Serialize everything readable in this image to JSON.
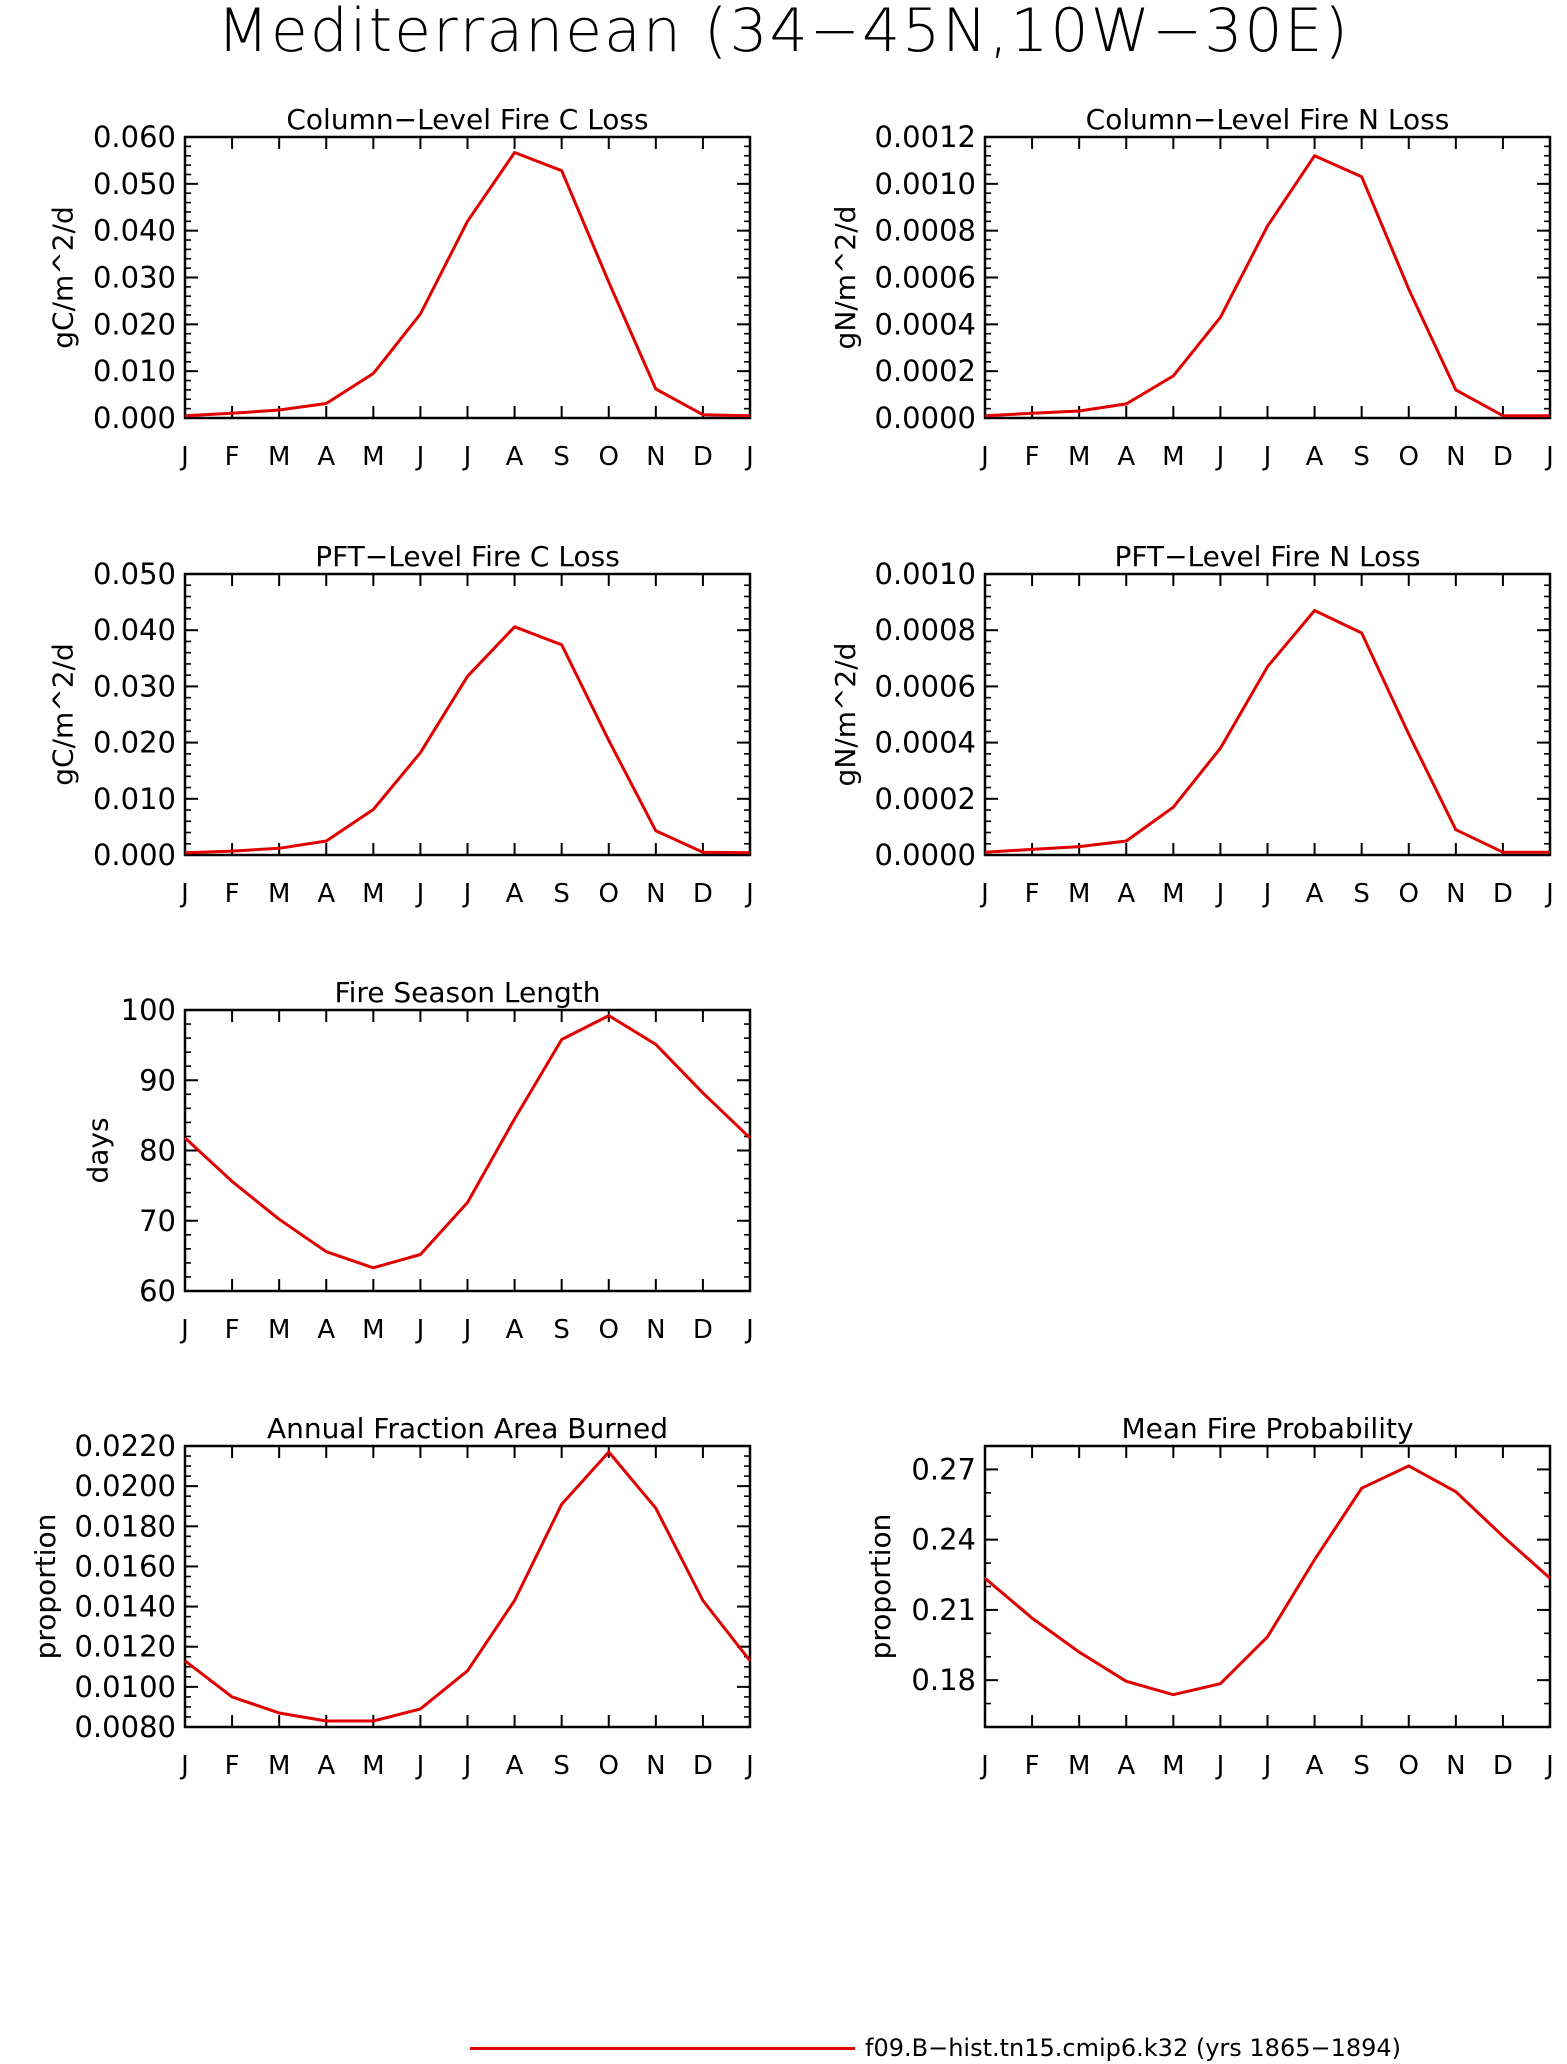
{
  "figure": {
    "title": "Mediterranean (34−45N,10W−30E)",
    "legend_label": "f09.B−hist.tn15.cmip6.k32 (yrs 1865−1894)",
    "line_color": "#e00000"
  },
  "chart_data": [
    {
      "type": "line",
      "title": "Column−Level Fire C Loss",
      "ylabel": "gC/m^2/d",
      "xlabel": "",
      "categories": [
        "J",
        "F",
        "M",
        "A",
        "M",
        "J",
        "J",
        "A",
        "S",
        "O",
        "N",
        "D",
        "J"
      ],
      "values": [
        0.0005,
        0.001,
        0.0017,
        0.0031,
        0.0095,
        0.0222,
        0.042,
        0.0567,
        0.0528,
        0.029,
        0.0062,
        0.0007,
        0.0005
      ],
      "ylim": [
        0,
        0.06
      ],
      "yticks": [
        "0.000",
        "0.010",
        "0.020",
        "0.030",
        "0.040",
        "0.050",
        "0.060"
      ],
      "minor_per_major": 5,
      "legend": "bottom-center"
    },
    {
      "type": "line",
      "title": "Column−Level Fire N Loss",
      "ylabel": "gN/m^2/d",
      "xlabel": "",
      "categories": [
        "J",
        "F",
        "M",
        "A",
        "M",
        "J",
        "J",
        "A",
        "S",
        "O",
        "N",
        "D",
        "J"
      ],
      "values": [
        1e-05,
        2e-05,
        3e-05,
        6e-05,
        0.00018,
        0.00043,
        0.00082,
        0.00112,
        0.00103,
        0.00055,
        0.00012,
        1e-05,
        1e-05
      ],
      "ylim": [
        0,
        0.0012
      ],
      "yticks": [
        "0.0000",
        "0.0002",
        "0.0004",
        "0.0006",
        "0.0008",
        "0.0010",
        "0.0012"
      ],
      "minor_per_major": 5
    },
    {
      "type": "line",
      "title": "PFT−Level Fire C Loss",
      "ylabel": "gC/m^2/d",
      "xlabel": "",
      "categories": [
        "J",
        "F",
        "M",
        "A",
        "M",
        "J",
        "J",
        "A",
        "S",
        "O",
        "N",
        "D",
        "J"
      ],
      "values": [
        0.0004,
        0.0007,
        0.0012,
        0.0025,
        0.0081,
        0.0182,
        0.0318,
        0.0406,
        0.0374,
        0.0204,
        0.0043,
        0.0005,
        0.0004
      ],
      "ylim": [
        0,
        0.05
      ],
      "yticks": [
        "0.000",
        "0.010",
        "0.020",
        "0.030",
        "0.040",
        "0.050"
      ],
      "minor_per_major": 5
    },
    {
      "type": "line",
      "title": "PFT−Level Fire N Loss",
      "ylabel": "gN/m^2/d",
      "xlabel": "",
      "categories": [
        "J",
        "F",
        "M",
        "A",
        "M",
        "J",
        "J",
        "A",
        "S",
        "O",
        "N",
        "D",
        "J"
      ],
      "values": [
        1e-05,
        2e-05,
        3e-05,
        5e-05,
        0.00017,
        0.00038,
        0.00067,
        0.00087,
        0.00079,
        0.00043,
        9e-05,
        1e-05,
        1e-05
      ],
      "ylim": [
        0,
        0.001
      ],
      "yticks": [
        "0.0000",
        "0.0002",
        "0.0004",
        "0.0006",
        "0.0008",
        "0.0010"
      ],
      "minor_per_major": 5
    },
    {
      "type": "line",
      "title": "Fire Season Length",
      "ylabel": "days",
      "xlabel": "",
      "categories": [
        "J",
        "F",
        "M",
        "A",
        "M",
        "J",
        "J",
        "A",
        "S",
        "O",
        "N",
        "D",
        "J"
      ],
      "values": [
        81.8,
        75.6,
        70.2,
        65.6,
        63.3,
        65.2,
        72.6,
        84.5,
        95.8,
        99.2,
        95.1,
        88.2,
        81.8
      ],
      "ylim": [
        60,
        100
      ],
      "yticks": [
        "60",
        "70",
        "80",
        "90",
        "100"
      ],
      "minor_per_major": 5
    },
    {
      "type": "line",
      "title": "Annual Fraction Area Burned",
      "ylabel": "proportion",
      "xlabel": "",
      "categories": [
        "J",
        "F",
        "M",
        "A",
        "M",
        "J",
        "J",
        "A",
        "S",
        "O",
        "N",
        "D",
        "J"
      ],
      "values": [
        0.0113,
        0.0095,
        0.0087,
        0.0083,
        0.0083,
        0.0089,
        0.0108,
        0.0143,
        0.0191,
        0.0217,
        0.0189,
        0.0143,
        0.0113
      ],
      "ylim": [
        0.008,
        0.022
      ],
      "yticks": [
        "0.0080",
        "0.0100",
        "0.0120",
        "0.0140",
        "0.0160",
        "0.0180",
        "0.0200",
        "0.0220"
      ],
      "minor_per_major": 4
    },
    {
      "type": "line",
      "title": "Mean Fire Probability",
      "ylabel": "proportion",
      "xlabel": "",
      "categories": [
        "J",
        "F",
        "M",
        "A",
        "M",
        "J",
        "J",
        "A",
        "S",
        "O",
        "N",
        "D",
        "J"
      ],
      "values": [
        0.2235,
        0.2065,
        0.192,
        0.1795,
        0.1738,
        0.1785,
        0.1985,
        0.2315,
        0.262,
        0.2715,
        0.2605,
        0.2415,
        0.2235
      ],
      "ylim": [
        0.16,
        0.28
      ],
      "yticks": [
        "0.18",
        "0.21",
        "0.24",
        "0.27"
      ],
      "ytick_values": [
        0.18,
        0.21,
        0.24,
        0.27
      ],
      "minor_per_major": 3
    }
  ]
}
